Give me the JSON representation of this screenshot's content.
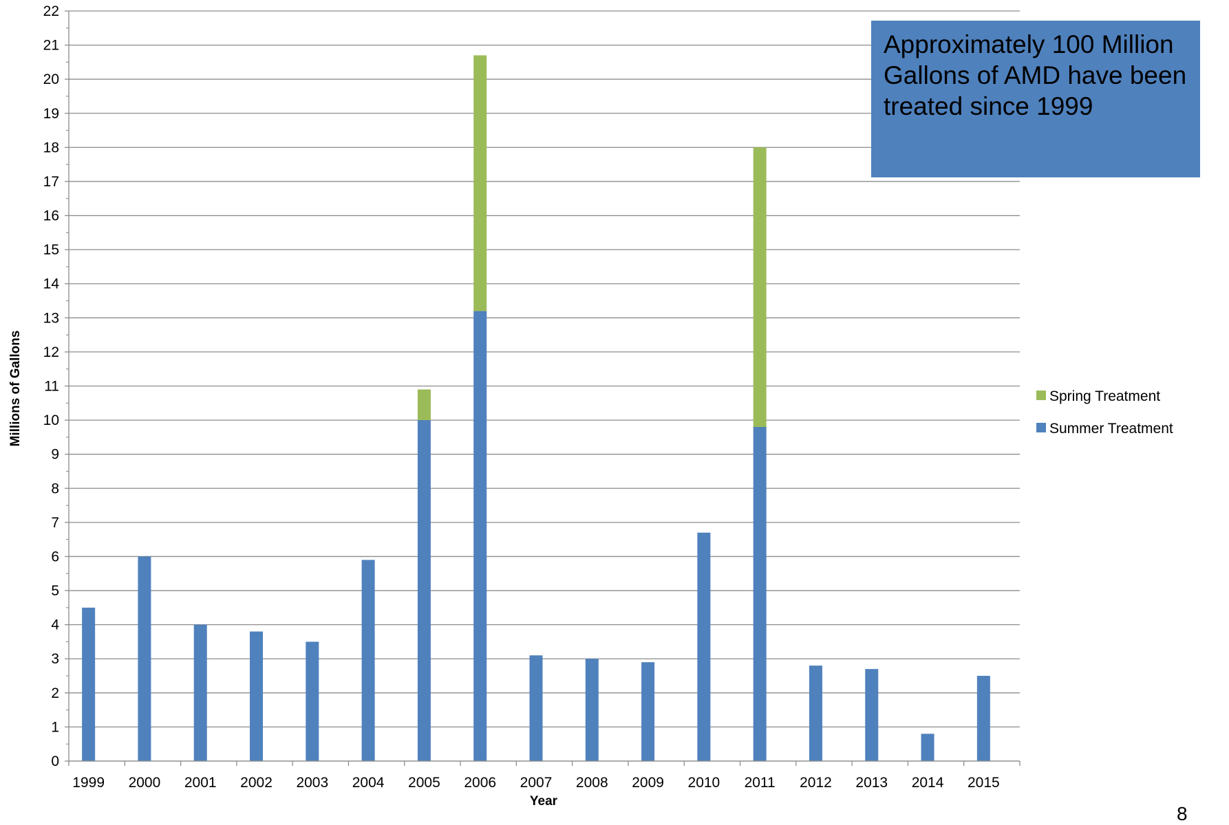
{
  "chart_data": {
    "type": "bar",
    "stacked": true,
    "categories": [
      "1999",
      "2000",
      "2001",
      "2002",
      "2003",
      "2004",
      "2005",
      "2006",
      "2007",
      "2008",
      "2009",
      "2010",
      "2011",
      "2012",
      "2013",
      "2014",
      "2015"
    ],
    "series": [
      {
        "name": "Summer Treatment",
        "color": "#4f81bd",
        "values": [
          4.5,
          6.0,
          4.0,
          3.8,
          3.5,
          5.9,
          10.0,
          13.2,
          3.1,
          3.0,
          2.9,
          6.7,
          9.8,
          2.8,
          2.7,
          0.8,
          2.5
        ]
      },
      {
        "name": "Spring Treatment",
        "color": "#9bbb59",
        "values": [
          0,
          0,
          0,
          0,
          0,
          0,
          0.9,
          7.5,
          0,
          0,
          0,
          0,
          8.2,
          0,
          0,
          0,
          0
        ]
      }
    ],
    "xlabel": "Year",
    "ylabel": "Millions of Gallons",
    "ylim": [
      0,
      22
    ],
    "yticks": [
      0,
      1,
      2,
      3,
      4,
      5,
      6,
      7,
      8,
      9,
      10,
      11,
      12,
      13,
      14,
      15,
      16,
      17,
      18,
      19,
      20,
      21,
      22
    ],
    "grid": true,
    "legend_position": "right"
  },
  "annotation": "Approximately 100 Million Gallons of AMD have been treated since 1999",
  "page_number": "8"
}
